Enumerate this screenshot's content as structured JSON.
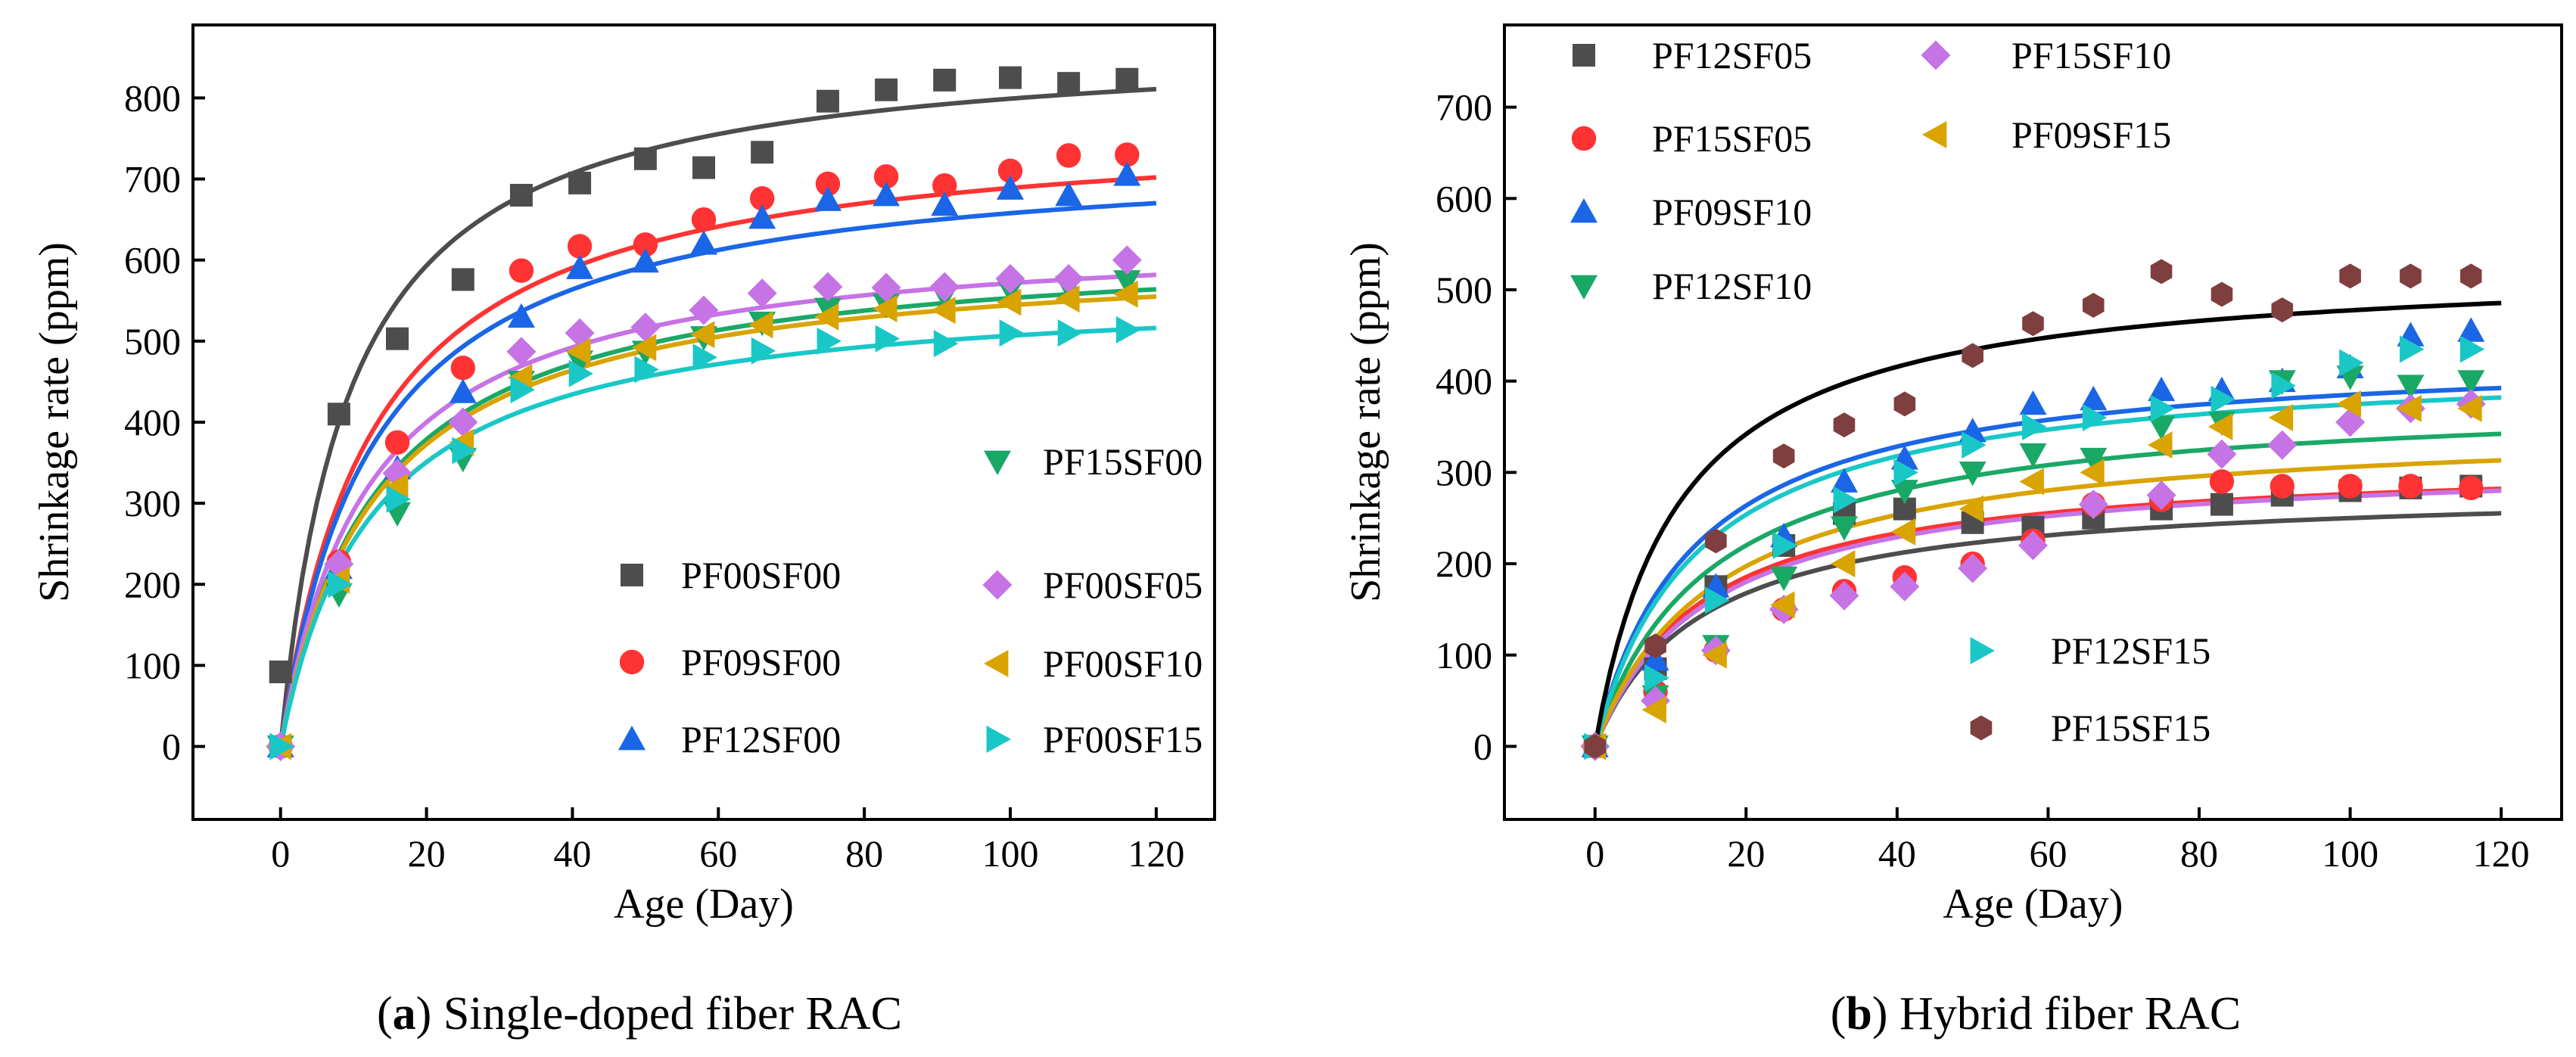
{
  "chart_data": [
    {
      "type": "scatter",
      "panel": "a",
      "caption_letter": "a",
      "caption_text": "Single-doped fiber RAC",
      "xlabel": "Age (Day)",
      "ylabel": "Shrinkage rate (ppm)",
      "xlim": [
        -12,
        128
      ],
      "ylim": [
        -90,
        890
      ],
      "xticks": [
        0,
        20,
        40,
        60,
        80,
        100,
        120
      ],
      "yticks": [
        0,
        100,
        200,
        300,
        400,
        500,
        600,
        700,
        800
      ],
      "fit_note": "solid lines are fitted curves",
      "series": [
        {
          "name": "PF00SF00",
          "marker": "square",
          "color": "#4d4d4d",
          "fit_color": "#4d4d4d",
          "x": [
            0,
            8,
            16,
            25,
            33,
            41,
            50,
            58,
            66,
            75,
            83,
            91,
            100,
            108,
            116
          ],
          "y": [
            92,
            410,
            503,
            576,
            680,
            695,
            725,
            714,
            733,
            796,
            810,
            822,
            825,
            818,
            823
          ],
          "fit": {
            "A": 875,
            "b": 9.5
          }
        },
        {
          "name": "PF09SF00",
          "marker": "circle",
          "color": "#ff3333",
          "fit_color": "#ff3333",
          "x": [
            0,
            8,
            16,
            25,
            33,
            41,
            50,
            58,
            66,
            75,
            83,
            91,
            100,
            108,
            116
          ],
          "y": [
            0,
            228,
            375,
            467,
            587,
            617,
            619,
            650,
            676,
            694,
            703,
            692,
            710,
            729,
            730
          ],
          "fit": {
            "A": 775,
            "b": 12.5
          }
        },
        {
          "name": "PF12SF00",
          "marker": "triangle-up",
          "color": "#1a66e6",
          "fit_color": "#1a66e6",
          "x": [
            0,
            8,
            16,
            25,
            33,
            41,
            50,
            58,
            66,
            75,
            83,
            91,
            100,
            108,
            116
          ],
          "y": [
            0,
            220,
            343,
            437,
            530,
            590,
            598,
            620,
            652,
            674,
            680,
            668,
            688,
            680,
            705
          ],
          "fit": {
            "A": 740,
            "b": 12.5
          }
        },
        {
          "name": "PF15SF00",
          "marker": "triangle-down",
          "color": "#1aa866",
          "fit_color": "#1aa866",
          "x": [
            0,
            8,
            16,
            25,
            33,
            41,
            50,
            58,
            66,
            75,
            83,
            91,
            100,
            108,
            116
          ],
          "y": [
            0,
            188,
            288,
            355,
            450,
            475,
            487,
            505,
            523,
            540,
            545,
            556,
            563,
            567,
            574
          ],
          "fit": {
            "A": 625,
            "b": 13
          }
        },
        {
          "name": "PF00SF05",
          "marker": "diamond",
          "color": "#c673e6",
          "fit_color": "#c673e6",
          "x": [
            0,
            8,
            16,
            25,
            33,
            41,
            50,
            58,
            66,
            75,
            83,
            91,
            100,
            108,
            116
          ],
          "y": [
            0,
            225,
            337,
            400,
            487,
            510,
            517,
            538,
            559,
            567,
            566,
            567,
            577,
            577,
            600
          ],
          "fit": {
            "A": 640,
            "b": 12
          }
        },
        {
          "name": "PF00SF10",
          "marker": "triangle-left",
          "color": "#d9a300",
          "fit_color": "#d9a300",
          "x": [
            0,
            8,
            16,
            25,
            33,
            41,
            50,
            58,
            66,
            75,
            83,
            91,
            100,
            108,
            116
          ],
          "y": [
            0,
            205,
            320,
            375,
            455,
            487,
            492,
            508,
            520,
            530,
            540,
            538,
            548,
            552,
            558
          ],
          "fit": {
            "A": 615,
            "b": 13
          }
        },
        {
          "name": "PF00SF15",
          "marker": "triangle-right",
          "color": "#1ac7c7",
          "fit_color": "#1ac7c7",
          "x": [
            0,
            8,
            16,
            25,
            33,
            41,
            50,
            58,
            66,
            75,
            83,
            91,
            100,
            108,
            116
          ],
          "y": [
            0,
            200,
            305,
            365,
            440,
            460,
            465,
            480,
            488,
            500,
            503,
            497,
            510,
            510,
            514
          ],
          "fit": {
            "A": 570,
            "b": 12.5
          }
        }
      ]
    },
    {
      "type": "scatter",
      "panel": "b",
      "caption_letter": "b",
      "caption_text": "Hybrid fiber RAC",
      "xlabel": "Age (Day)",
      "ylabel": "Shrinkage rate (ppm)",
      "xlim": [
        -12,
        128
      ],
      "ylim": [
        -80,
        790
      ],
      "xticks": [
        0,
        20,
        40,
        60,
        80,
        100,
        120
      ],
      "yticks": [
        0,
        100,
        200,
        300,
        400,
        500,
        600,
        700
      ],
      "series": [
        {
          "name": "PF12SF05",
          "marker": "square",
          "color": "#4d4d4d",
          "fit_color": "#4d4d4d",
          "x": [
            0,
            8,
            16,
            25,
            33,
            41,
            50,
            58,
            66,
            75,
            83,
            91,
            100,
            108,
            116
          ],
          "y": [
            0,
            85,
            175,
            220,
            255,
            260,
            245,
            240,
            250,
            260,
            265,
            275,
            280,
            283,
            285
          ],
          "fit": {
            "A": 285,
            "b": 14
          }
        },
        {
          "name": "PF15SF05",
          "marker": "circle",
          "color": "#ff3333",
          "fit_color": "#ff3333",
          "x": [
            0,
            8,
            16,
            25,
            33,
            41,
            50,
            58,
            66,
            75,
            83,
            91,
            100,
            108,
            116
          ],
          "y": [
            0,
            60,
            105,
            150,
            170,
            185,
            200,
            225,
            265,
            270,
            290,
            285,
            285,
            285,
            283
          ],
          "fit": {
            "A": 315,
            "b": 14
          }
        },
        {
          "name": "PF09SF10",
          "marker": "triangle-up",
          "color": "#1a66e6",
          "fit_color": "#1a66e6",
          "x": [
            0,
            8,
            16,
            25,
            33,
            41,
            50,
            58,
            66,
            75,
            83,
            91,
            100,
            108,
            116
          ],
          "y": [
            0,
            95,
            175,
            230,
            290,
            315,
            345,
            375,
            380,
            390,
            390,
            400,
            415,
            450,
            455
          ],
          "fit": {
            "A": 435,
            "b": 13
          }
        },
        {
          "name": "PF12SF10",
          "marker": "triangle-down",
          "color": "#1aa866",
          "fit_color": "#1aa866",
          "x": [
            0,
            8,
            16,
            25,
            33,
            41,
            50,
            58,
            66,
            75,
            83,
            91,
            100,
            108,
            116
          ],
          "y": [
            0,
            55,
            110,
            185,
            240,
            280,
            300,
            320,
            315,
            350,
            355,
            400,
            405,
            395,
            400
          ],
          "fit": {
            "A": 385,
            "b": 15
          }
        },
        {
          "name": "PF15SF10",
          "marker": "diamond",
          "color": "#c673e6",
          "fit_color": "#c673e6",
          "x": [
            0,
            8,
            16,
            25,
            33,
            41,
            50,
            58,
            66,
            75,
            83,
            91,
            100,
            108,
            116
          ],
          "y": [
            0,
            50,
            105,
            150,
            165,
            175,
            195,
            220,
            265,
            275,
            320,
            330,
            355,
            370,
            375
          ],
          "fit": {
            "A": 315,
            "b": 15
          }
        },
        {
          "name": "PF09SF15",
          "marker": "triangle-left",
          "color": "#d9a300",
          "fit_color": "#d9a300",
          "x": [
            0,
            8,
            16,
            25,
            33,
            41,
            50,
            58,
            66,
            75,
            83,
            91,
            100,
            108,
            116
          ],
          "y": [
            0,
            40,
            100,
            155,
            200,
            235,
            260,
            290,
            300,
            330,
            350,
            360,
            375,
            370,
            370
          ],
          "fit": {
            "A": 355,
            "b": 16
          }
        },
        {
          "name": "PF12SF15",
          "marker": "triangle-right",
          "color": "#1ac7c7",
          "fit_color": "#1ac7c7",
          "x": [
            0,
            8,
            16,
            25,
            33,
            41,
            50,
            58,
            66,
            75,
            83,
            91,
            100,
            108,
            116
          ],
          "y": [
            0,
            75,
            160,
            220,
            270,
            300,
            330,
            350,
            360,
            370,
            380,
            395,
            420,
            435,
            435
          ],
          "fit": {
            "A": 425,
            "b": 13.5
          }
        },
        {
          "name": "PF15SF15",
          "marker": "hexagon",
          "color": "#7f3f3f",
          "fit_color": "#000000",
          "x": [
            0,
            8,
            16,
            25,
            33,
            41,
            50,
            58,
            66,
            75,
            83,
            91,
            100,
            108,
            116
          ],
          "y": [
            0,
            110,
            225,
            318,
            352,
            375,
            428,
            463,
            483,
            520,
            495,
            478,
            515,
            515,
            515
          ],
          "fit": {
            "A": 530,
            "b": 11
          }
        }
      ]
    }
  ]
}
